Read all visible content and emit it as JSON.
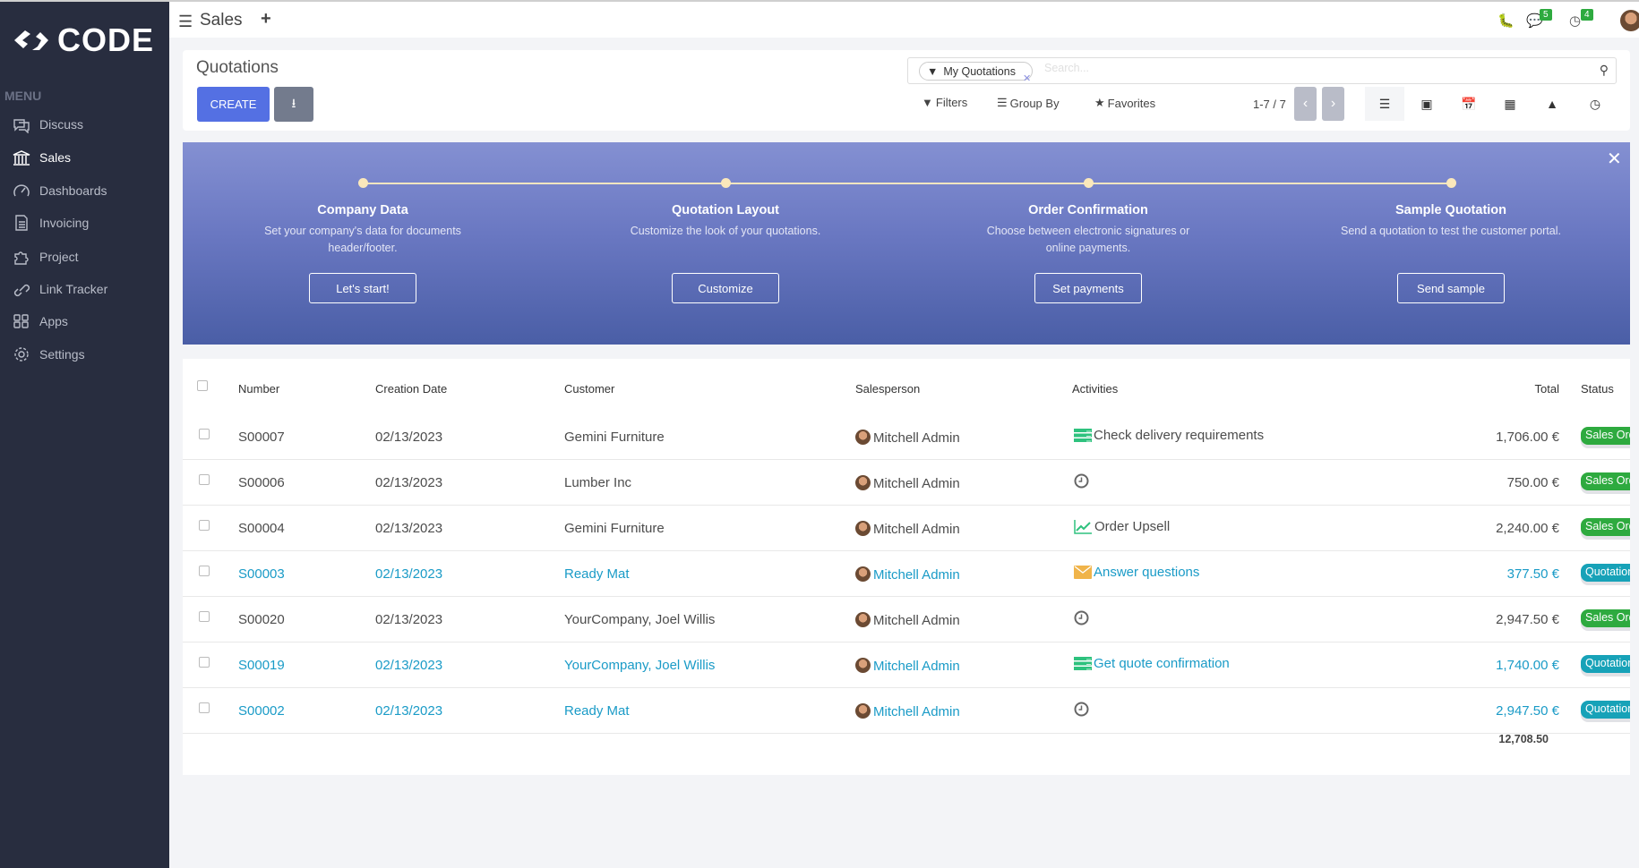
{
  "brand": "CODE",
  "sidebar": {
    "menu_label": "MENU",
    "items": [
      {
        "label": "Discuss",
        "icon": "chat-icon"
      },
      {
        "label": "Sales",
        "icon": "bank-icon",
        "active": true
      },
      {
        "label": "Dashboards",
        "icon": "gauge-icon"
      },
      {
        "label": "Invoicing",
        "icon": "invoice-icon"
      },
      {
        "label": "Project",
        "icon": "puzzle-icon"
      },
      {
        "label": "Link Tracker",
        "icon": "link-icon"
      },
      {
        "label": "Apps",
        "icon": "apps-icon"
      },
      {
        "label": "Settings",
        "icon": "gear-icon"
      }
    ]
  },
  "topbar": {
    "app": "Sales",
    "messages_count": "5",
    "activities_count": "4"
  },
  "control": {
    "title": "Quotations",
    "create": "CREATE",
    "facet": "My Quotations",
    "search_placeholder": "Search...",
    "filters": "Filters",
    "group_by": "Group By",
    "favorites": "Favorites",
    "pager": "1-7 / 7"
  },
  "banner": {
    "steps": [
      {
        "title": "Company Data",
        "desc": "Set your company's data for documents header/footer.",
        "button": "Let's start!"
      },
      {
        "title": "Quotation Layout",
        "desc": "Customize the look of your quotations.",
        "button": "Customize"
      },
      {
        "title": "Order Confirmation",
        "desc": "Choose between electronic signatures or online payments.",
        "button": "Set payments"
      },
      {
        "title": "Sample Quotation",
        "desc": "Send a quotation to test the customer portal.",
        "button": "Send sample"
      }
    ]
  },
  "table": {
    "headers": {
      "number": "Number",
      "date": "Creation Date",
      "customer": "Customer",
      "salesperson": "Salesperson",
      "activities": "Activities",
      "total": "Total",
      "status": "Status"
    },
    "rows": [
      {
        "number": "S00007",
        "date": "02/13/2023",
        "customer": "Gemini Furniture",
        "salesperson": "Mitchell Admin",
        "activity": "Check delivery requirements",
        "activity_icon": "todo-icon",
        "total": "1,706.00 €",
        "status": "Sales Order",
        "draft": false
      },
      {
        "number": "S00006",
        "date": "02/13/2023",
        "customer": "Lumber Inc",
        "salesperson": "Mitchell Admin",
        "activity": "",
        "activity_icon": "clock-icon",
        "total": "750.00 €",
        "status": "Sales Order",
        "draft": false
      },
      {
        "number": "S00004",
        "date": "02/13/2023",
        "customer": "Gemini Furniture",
        "salesperson": "Mitchell Admin",
        "activity": "Order Upsell",
        "activity_icon": "upsell-chart-icon",
        "total": "2,240.00 €",
        "status": "Sales Order",
        "draft": false
      },
      {
        "number": "S00003",
        "date": "02/13/2023",
        "customer": "Ready Mat",
        "salesperson": "Mitchell Admin",
        "activity": "Answer questions",
        "activity_icon": "email-icon",
        "total": "377.50 €",
        "status": "Quotation",
        "draft": true
      },
      {
        "number": "S00020",
        "date": "02/13/2023",
        "customer": "YourCompany, Joel Willis",
        "salesperson": "Mitchell Admin",
        "activity": "",
        "activity_icon": "clock-icon",
        "total": "2,947.50 €",
        "status": "Sales Order",
        "draft": false
      },
      {
        "number": "S00019",
        "date": "02/13/2023",
        "customer": "YourCompany, Joel Willis",
        "salesperson": "Mitchell Admin",
        "activity": "Get quote confirmation",
        "activity_icon": "todo-icon",
        "total": "1,740.00 €",
        "status": "Quotation",
        "draft": true
      },
      {
        "number": "S00002",
        "date": "02/13/2023",
        "customer": "Ready Mat",
        "salesperson": "Mitchell Admin",
        "activity": "",
        "activity_icon": "clock-icon",
        "total": "2,947.50 €",
        "status": "Quotation",
        "draft": true
      }
    ],
    "sum_total": "12,708.50"
  },
  "colors": {
    "sidebar": "#282d3f",
    "primary": "#5470e3",
    "draft_text": "#1a9bc7",
    "sales_order": "#2eaa3f",
    "quotation": "#17a2b8"
  }
}
